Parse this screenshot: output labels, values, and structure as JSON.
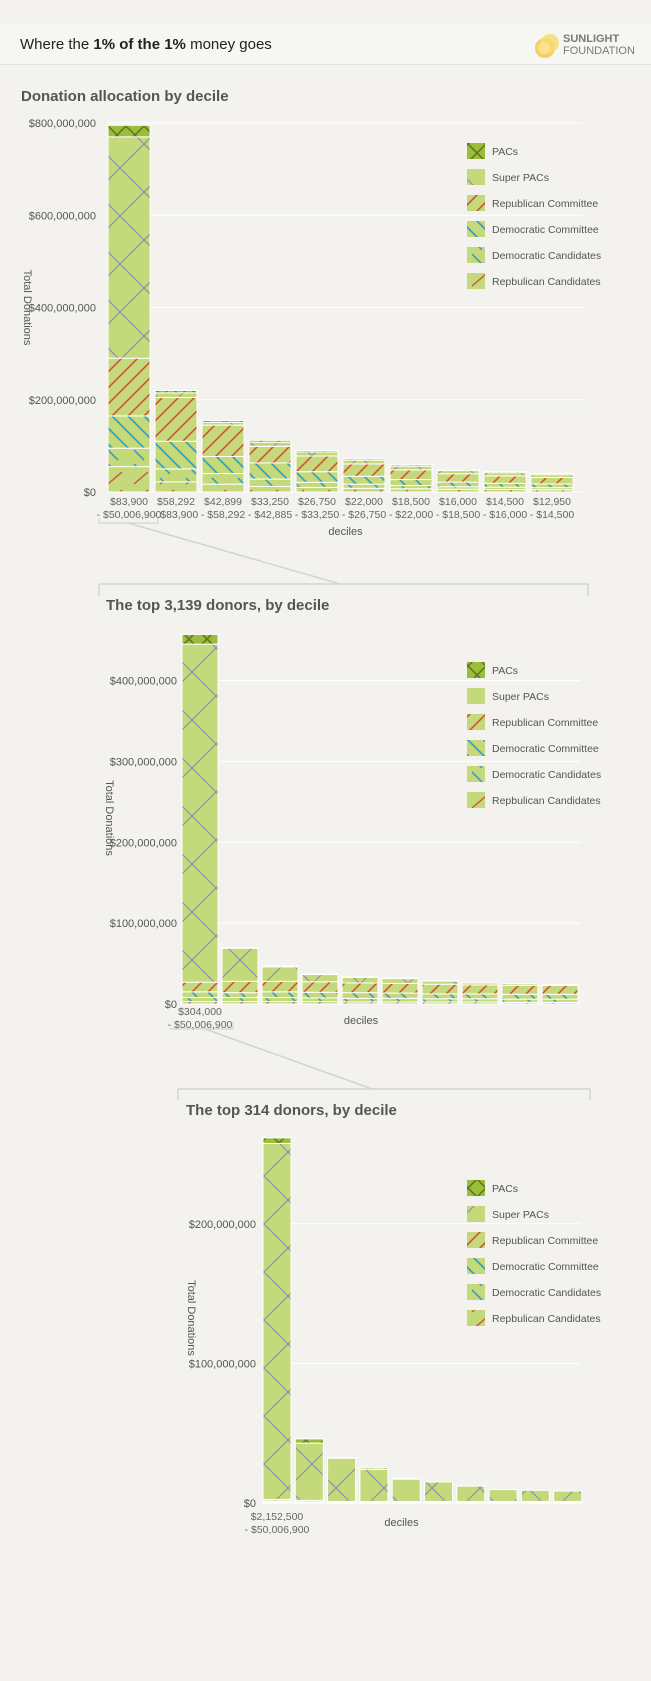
{
  "header": {
    "title_prefix": "Where the ",
    "title_bold1": "1% of the 1%",
    "title_middle": " money goes",
    "logo_line1": "SUNLIGHT",
    "logo_line2": "FOUNDATION"
  },
  "colors": {
    "bar": "#c4d97a",
    "pacs": "#9bbd3a",
    "super_pacs_lines": "#8e95a8",
    "republican": "#d0533a",
    "democratic": "#3aa0c8",
    "background": "#f3f2ee"
  },
  "legend": [
    {
      "key": "pacs",
      "label": "PACs",
      "icon": "pacs-swatch-icon"
    },
    {
      "key": "super_pacs",
      "label": "Super PACs",
      "icon": "super-pacs-swatch-icon"
    },
    {
      "key": "rep_committee",
      "label": "Republican Committee",
      "icon": "republican-committee-swatch-icon"
    },
    {
      "key": "dem_committee",
      "label": "Democratic Committee",
      "icon": "democratic-committee-swatch-icon"
    },
    {
      "key": "dem_candidates",
      "label": "Democratic Candidates",
      "icon": "democratic-candidates-swatch-icon"
    },
    {
      "key": "rep_candidates",
      "label": "Repbulican Candidates",
      "icon": "republican-candidates-swatch-icon"
    }
  ],
  "chart_data": [
    {
      "type": "bar",
      "stacked": true,
      "title": "Donation allocation by decile",
      "xlabel": "deciles",
      "ylabel": "Total Donations",
      "ylim": [
        0,
        800000000
      ],
      "yticks": [
        0,
        200000000,
        400000000,
        600000000,
        800000000
      ],
      "ytick_labels": [
        "$0",
        "$200,000,000",
        "$400,000,000",
        "$600,000,000",
        "$800,000,000"
      ],
      "categories": [
        [
          "$83,900",
          "- $50,006,900"
        ],
        [
          "$58,292",
          "- $83,900"
        ],
        [
          "$42,899",
          "- $58,292"
        ],
        [
          "$33,250",
          "- $42,885"
        ],
        [
          "$26,750",
          "- $33,250"
        ],
        [
          "$22,000",
          "- $26,750"
        ],
        [
          "$18,500",
          "- $22,000"
        ],
        [
          "$16,000",
          "- $18,500"
        ],
        [
          "$14,500",
          "- $16,000"
        ],
        [
          "$12,950",
          "- $14,500"
        ]
      ],
      "series": [
        {
          "key": "rep_candidates",
          "name": "Repbulican Candidates",
          "values": [
            55000000,
            22000000,
            17000000,
            12000000,
            10000000,
            8000000,
            7000000,
            6000000,
            5500000,
            5000000
          ]
        },
        {
          "key": "dem_candidates",
          "name": "Democratic Candidates",
          "values": [
            40000000,
            28000000,
            23000000,
            16000000,
            11000000,
            9000000,
            7000000,
            5500000,
            5000000,
            4500000
          ]
        },
        {
          "key": "dem_committee",
          "name": "Democratic Committee",
          "values": [
            70000000,
            60000000,
            37000000,
            35000000,
            23000000,
            17000000,
            13000000,
            10000000,
            8500000,
            8000000
          ]
        },
        {
          "key": "rep_committee",
          "name": "Republican Committee",
          "values": [
            125000000,
            95000000,
            68000000,
            36000000,
            34000000,
            27000000,
            21000000,
            18000000,
            16000000,
            14000000
          ]
        },
        {
          "key": "super_pacs",
          "name": "Super PACs",
          "values": [
            480000000,
            10000000,
            6000000,
            9000000,
            9000000,
            8000000,
            8000000,
            7000000,
            7000000,
            6000000
          ]
        },
        {
          "key": "pacs",
          "name": "PACs",
          "values": [
            25000000,
            5000000,
            4000000,
            4000000,
            3000000,
            3000000,
            3000000,
            2500000,
            2500000,
            2500000
          ]
        }
      ]
    },
    {
      "type": "bar",
      "stacked": true,
      "title": "The top 3,139 donors, by decile",
      "xlabel": "deciles",
      "ylabel": "Total Donations",
      "ylim": [
        0,
        460000000
      ],
      "yticks": [
        0,
        100000000,
        200000000,
        300000000,
        400000000
      ],
      "ytick_labels": [
        "$0",
        "$100,000,000",
        "$200,000,000",
        "$300,000,000",
        "$400,000,000"
      ],
      "categories": [
        [
          "$304,000",
          "- $50,006,900"
        ],
        [
          "",
          ""
        ],
        [
          "",
          ""
        ],
        [
          "",
          ""
        ],
        [
          "",
          ""
        ],
        [
          "",
          ""
        ],
        [
          "",
          ""
        ],
        [
          "",
          ""
        ],
        [
          "",
          ""
        ],
        [
          "",
          ""
        ]
      ],
      "series": [
        {
          "key": "rep_candidates",
          "name": "Repbulican Candidates",
          "values": [
            3000000,
            3000000,
            3000000,
            3000000,
            2500000,
            2500000,
            2500000,
            2500000,
            2000000,
            2000000
          ]
        },
        {
          "key": "dem_candidates",
          "name": "Democratic Candidates",
          "values": [
            5000000,
            5000000,
            5000000,
            4500000,
            4500000,
            4500000,
            4000000,
            4000000,
            4000000,
            4000000
          ]
        },
        {
          "key": "dem_committee",
          "name": "Democratic Committee",
          "values": [
            7000000,
            6000000,
            7000000,
            7000000,
            7000000,
            6500000,
            6000000,
            6000000,
            6000000,
            6000000
          ]
        },
        {
          "key": "rep_committee",
          "name": "Republican Committee",
          "values": [
            12000000,
            14000000,
            13000000,
            13000000,
            12000000,
            12000000,
            12000000,
            11000000,
            11000000,
            11000000
          ]
        },
        {
          "key": "super_pacs",
          "name": "Super PACs",
          "values": [
            418000000,
            41000000,
            18000000,
            9000000,
            7000000,
            6000000,
            4000000,
            2500000,
            2000000,
            1000000
          ]
        },
        {
          "key": "pacs",
          "name": "PACs",
          "values": [
            12000000,
            1000000,
            1000000,
            500000,
            500000,
            500000,
            500000,
            0,
            0,
            0
          ]
        }
      ]
    },
    {
      "type": "bar",
      "stacked": true,
      "title": "The top 314 donors, by decile",
      "xlabel": "deciles",
      "ylabel": "Total Donations",
      "ylim": [
        0,
        265000000
      ],
      "yticks": [
        0,
        100000000,
        200000000
      ],
      "ytick_labels": [
        "$0",
        "$100,000,000",
        "$200,000,000"
      ],
      "categories": [
        [
          "$2,152,500",
          "- $50,006,900"
        ],
        [
          "",
          ""
        ],
        [
          "",
          ""
        ],
        [
          "",
          ""
        ],
        [
          "",
          ""
        ],
        [
          "",
          ""
        ],
        [
          "",
          ""
        ],
        [
          "",
          ""
        ],
        [
          "",
          ""
        ],
        [
          "",
          ""
        ]
      ],
      "series": [
        {
          "key": "rep_candidates",
          "name": "Repbulican Candidates",
          "values": [
            500000,
            300000,
            200000,
            200000,
            200000,
            200000,
            200000,
            200000,
            200000,
            200000
          ]
        },
        {
          "key": "dem_candidates",
          "name": "Democratic Candidates",
          "values": [
            500000,
            300000,
            200000,
            200000,
            200000,
            200000,
            200000,
            200000,
            200000,
            200000
          ]
        },
        {
          "key": "dem_committee",
          "name": "Democratic Committee",
          "values": [
            500000,
            300000,
            200000,
            200000,
            200000,
            200000,
            200000,
            200000,
            200000,
            200000
          ]
        },
        {
          "key": "rep_committee",
          "name": "Republican Committee",
          "values": [
            1000000,
            1000000,
            500000,
            500000,
            500000,
            500000,
            500000,
            500000,
            500000,
            500000
          ]
        },
        {
          "key": "super_pacs",
          "name": "Super PACs",
          "values": [
            255000000,
            41000000,
            31000000,
            23000000,
            16000000,
            14000000,
            11000000,
            8500000,
            8000000,
            7500000
          ]
        },
        {
          "key": "pacs",
          "name": "PACs",
          "values": [
            4000000,
            3000000,
            500000,
            1000000,
            500000,
            0,
            0,
            0,
            0,
            0
          ]
        }
      ]
    }
  ]
}
